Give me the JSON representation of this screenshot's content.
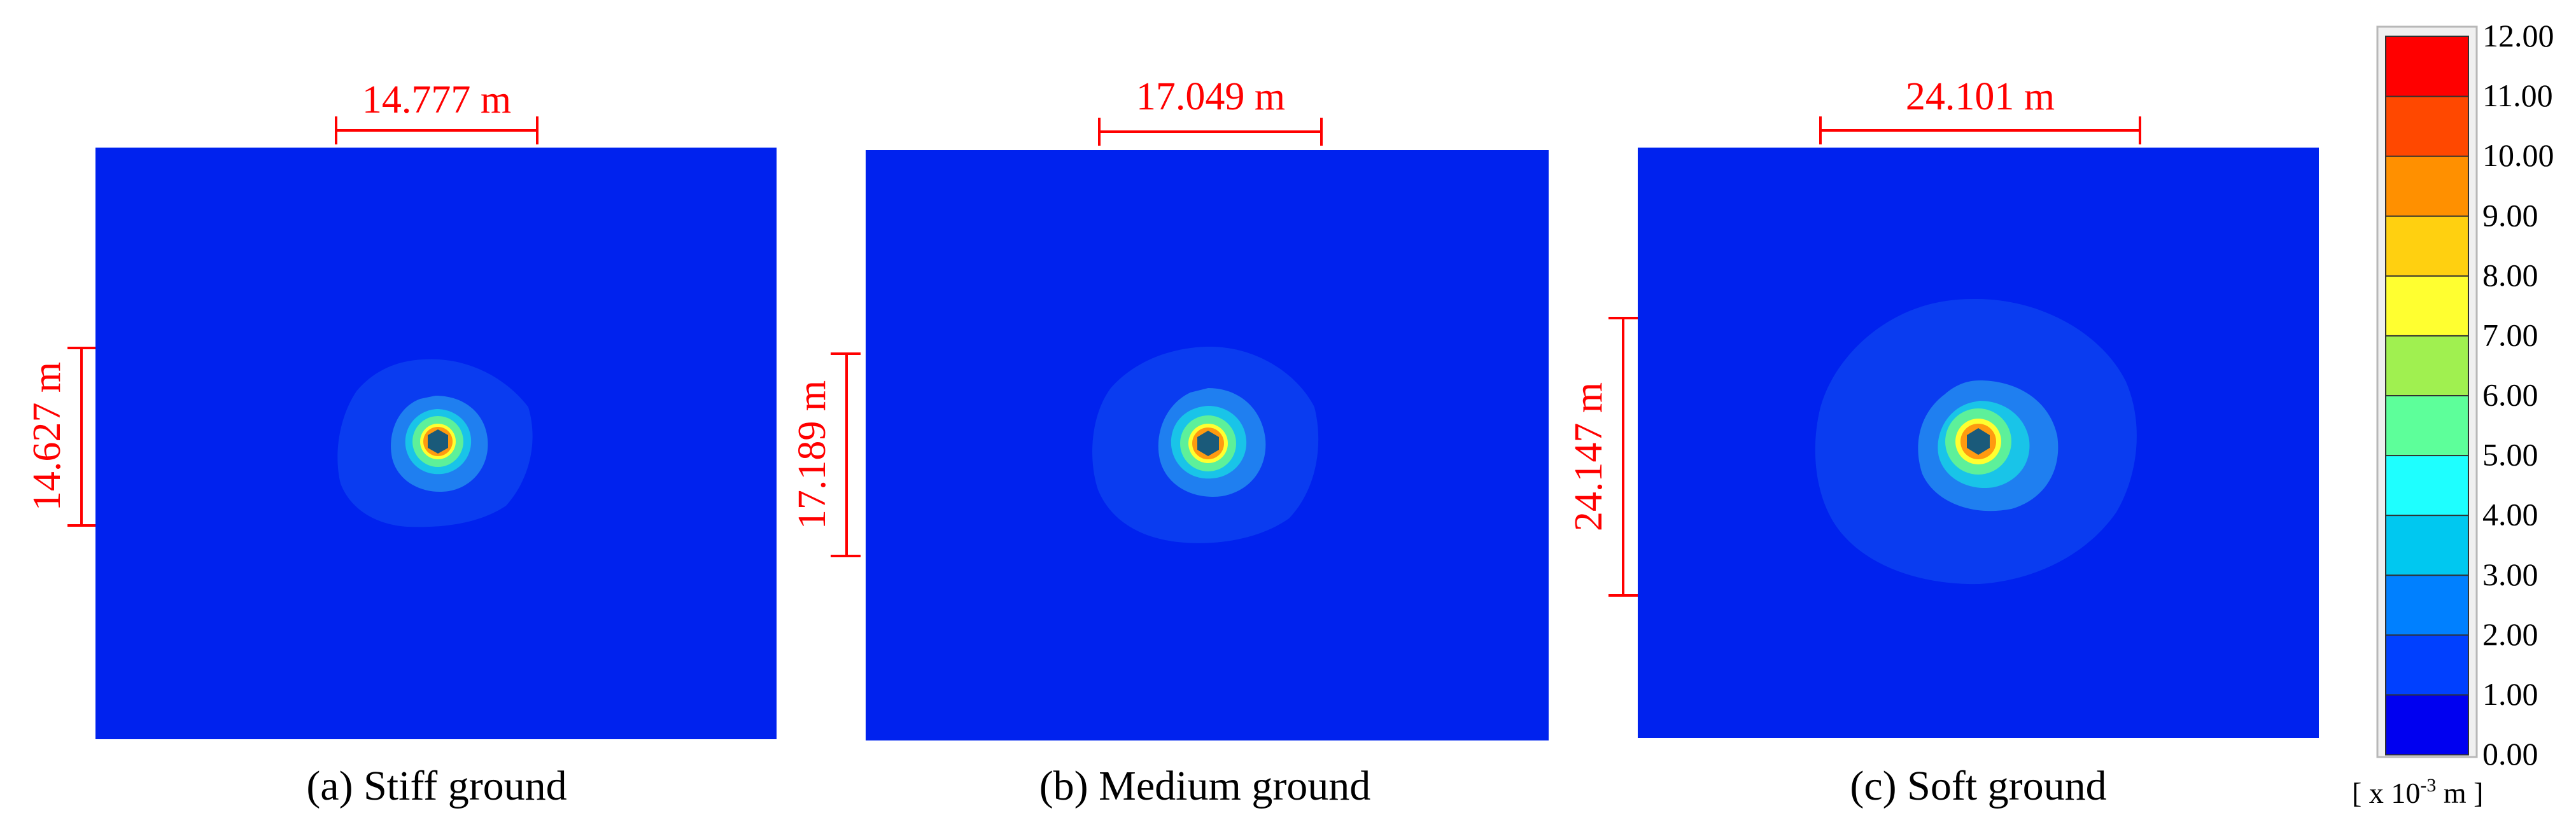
{
  "panels": [
    {
      "id": "a",
      "caption": "(a) Stiff ground",
      "width_label": "14.777 m",
      "height_label": "14.627 m",
      "zone_radii_m": {
        "level_1": 7.4,
        "level_2": 2.6,
        "level_3": 1.7,
        "level_4": 1.1,
        "level_5": 0.75
      }
    },
    {
      "id": "b",
      "caption": "(b) Medium ground",
      "width_label": "17.049 m",
      "height_label": "17.189 m",
      "zone_radii_m": {
        "level_1": 8.6,
        "level_2": 2.9,
        "level_3": 1.9,
        "level_4": 1.2,
        "level_5": 0.8
      }
    },
    {
      "id": "c",
      "caption": "(c) Soft ground",
      "width_label": "24.101 m",
      "height_label": "24.147 m",
      "zone_radii_m": {
        "level_1": 12.05,
        "level_2": 3.9,
        "level_3": 2.6,
        "level_4": 1.6,
        "level_5": 1.0
      }
    }
  ],
  "legend": {
    "ticks": [
      "12.00",
      "11.00",
      "10.00",
      "9.00",
      "8.00",
      "7.00",
      "6.00",
      "5.00",
      "4.00",
      "3.00",
      "2.00",
      "1.00",
      "0.00"
    ],
    "unit_prefix": "[ x 10",
    "unit_exp": "-3",
    "unit_suffix": " m ]",
    "colors_bottom_to_top": [
      "#0000f0",
      "#0040ff",
      "#0080ff",
      "#00c8f0",
      "#1effff",
      "#5dff9a",
      "#a0f050",
      "#ffff30",
      "#ffd010",
      "#ff9000",
      "#ff4800",
      "#ff0000"
    ]
  },
  "colors": {
    "background_field": "#0022ee",
    "cavity": "#1a5a7a",
    "dimension": "#ff0000"
  }
}
